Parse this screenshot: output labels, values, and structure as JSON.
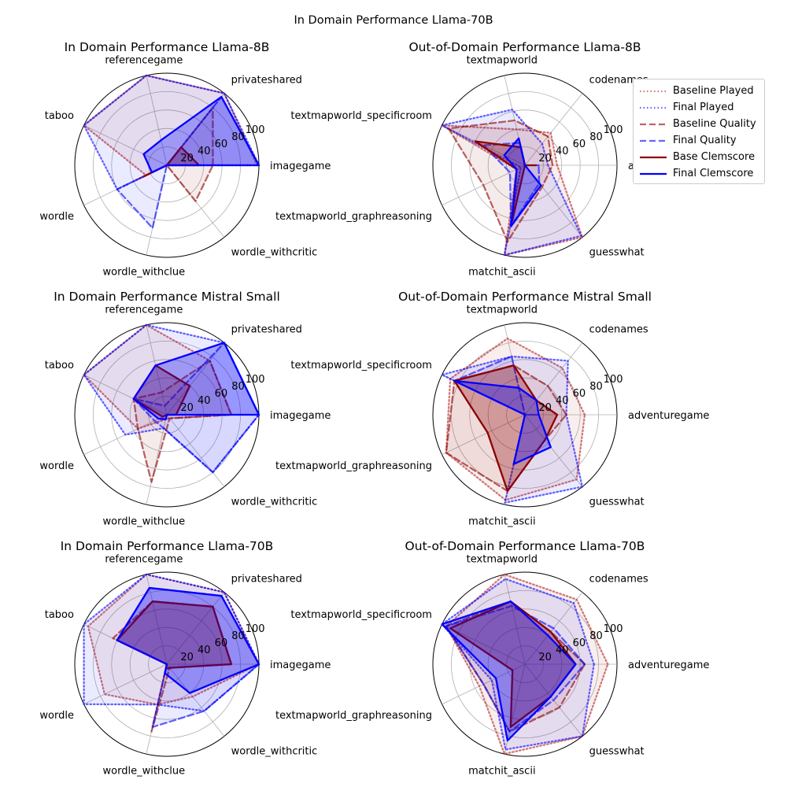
{
  "suptitle": "In Domain Performance Llama-70B",
  "legend": [
    {
      "label": "Baseline Played",
      "color": "#b22222",
      "style": "dotted",
      "width": 2.3
    },
    {
      "label": "Final Played",
      "color": "#0000ff",
      "style": "dotted",
      "width": 2.3
    },
    {
      "label": "Baseline Quality",
      "color": "#8b0000",
      "style": "dashed",
      "width": 2.3
    },
    {
      "label": "Final Quality",
      "color": "#0000ff",
      "style": "dashed",
      "width": 2.3
    },
    {
      "label": "Base Clemscore",
      "color": "#8b0000",
      "style": "solid",
      "width": 2.3
    },
    {
      "label": "Final Clemscore",
      "color": "#0000ff",
      "style": "solid",
      "width": 2.3
    }
  ],
  "chart_data": [
    {
      "type": "radar",
      "title": "In Domain Performance Llama-8B",
      "categories": [
        "imagegame",
        "privateshared",
        "referencegame",
        "taboo",
        "wordle",
        "wordle_withclue",
        "wordle_withcritic"
      ],
      "rlim": [
        0,
        100
      ],
      "rticks": [
        20,
        40,
        60,
        80,
        100
      ],
      "series": [
        {
          "name": "Baseline Played",
          "values": [
            98,
            100,
            100,
            100,
            25,
            0,
            0
          ]
        },
        {
          "name": "Final Played",
          "values": [
            100,
            100,
            100,
            100,
            60,
            0,
            0
          ]
        },
        {
          "name": "Baseline Quality",
          "values": [
            50,
            80,
            0,
            0,
            35,
            0,
            50
          ]
        },
        {
          "name": "Final Quality",
          "values": [
            100,
            95,
            0,
            0,
            60,
            70,
            0
          ]
        },
        {
          "name": "Base Clemscore",
          "values": [
            35,
            25,
            0,
            0,
            28,
            0,
            0
          ]
        },
        {
          "name": "Final Clemscore",
          "values": [
            100,
            95,
            28,
            28,
            18,
            0,
            0
          ]
        }
      ]
    },
    {
      "type": "radar",
      "title": "Out-of-Domain Performance Llama-8B",
      "categories": [
        "adventuregame",
        "codenames",
        "textmapworld",
        "textmapworld_specificroom",
        "textmapworld_graphreasoning",
        "matchit_ascii",
        "guesswhat"
      ],
      "rlim": [
        0,
        100
      ],
      "rticks": [
        20,
        40,
        60,
        80,
        100
      ],
      "series": [
        {
          "name": "Baseline Played",
          "values": [
            35,
            45,
            40,
            100,
            10,
            100,
            100
          ]
        },
        {
          "name": "Final Played",
          "values": [
            25,
            30,
            62,
            100,
            5,
            100,
            98
          ]
        },
        {
          "name": "Baseline Quality",
          "values": [
            30,
            40,
            50,
            92,
            50,
            85,
            30
          ]
        },
        {
          "name": "Final Quality",
          "values": [
            15,
            0,
            25,
            50,
            18,
            68,
            25
          ]
        },
        {
          "name": "Base Clemscore",
          "values": [
            12,
            0,
            20,
            60,
            10,
            62,
            0
          ]
        },
        {
          "name": "Final Clemscore",
          "values": [
            0,
            0,
            30,
            25,
            10,
            68,
            28
          ]
        }
      ]
    },
    {
      "type": "radar",
      "title": "In Domain Performance Mistral Small",
      "categories": [
        "imagegame",
        "privateshared",
        "referencegame",
        "taboo",
        "wordle",
        "wordle_withclue",
        "wordle_withcritic"
      ],
      "rlim": [
        0,
        100
      ],
      "rticks": [
        20,
        40,
        60,
        80,
        100
      ],
      "series": [
        {
          "name": "Baseline Played",
          "values": [
            70,
            75,
            100,
            100,
            35,
            5,
            5
          ]
        },
        {
          "name": "Final Played",
          "values": [
            100,
            100,
            100,
            100,
            50,
            15,
            80
          ]
        },
        {
          "name": "Baseline Quality",
          "values": [
            70,
            75,
            25,
            40,
            35,
            75,
            5
          ]
        },
        {
          "name": "Final Quality",
          "values": [
            100,
            100,
            10,
            40,
            15,
            15,
            80
          ]
        },
        {
          "name": "Base Clemscore",
          "values": [
            10,
            40,
            55,
            40,
            5,
            0,
            0
          ]
        },
        {
          "name": "Final Clemscore",
          "values": [
            100,
            100,
            55,
            40,
            10,
            5,
            0
          ]
        }
      ]
    },
    {
      "type": "radar",
      "title": "Out-of-Domain Performance Mistral Small",
      "categories": [
        "adventuregame",
        "codenames",
        "textmapworld",
        "textmapworld_specificroom",
        "textmapworld_graphreasoning",
        "matchit_ascii",
        "guesswhat"
      ],
      "rlim": [
        0,
        100
      ],
      "rticks": [
        20,
        40,
        60,
        80,
        100
      ],
      "series": [
        {
          "name": "Baseline Played",
          "values": [
            65,
            65,
            85,
            90,
            95,
            95,
            90
          ]
        },
        {
          "name": "Final Played",
          "values": [
            45,
            75,
            65,
            100,
            0,
            98,
            100
          ]
        },
        {
          "name": "Baseline Quality",
          "values": [
            45,
            40,
            55,
            85,
            95,
            85,
            35
          ]
        },
        {
          "name": "Final Quality",
          "values": [
            15,
            0,
            65,
            85,
            0,
            0,
            0
          ]
        },
        {
          "name": "Base Clemscore",
          "values": [
            35,
            20,
            55,
            85,
            45,
            85,
            35
          ]
        },
        {
          "name": "Final Clemscore",
          "values": [
            15,
            20,
            30,
            85,
            0,
            55,
            45
          ]
        }
      ]
    },
    {
      "type": "radar",
      "title": "In Domain Performance Llama-70B",
      "categories": [
        "imagegame",
        "privateshared",
        "referencegame",
        "taboo",
        "wordle",
        "wordle_withclue",
        "wordle_withcritic"
      ],
      "rlim": [
        0,
        100
      ],
      "rticks": [
        20,
        40,
        60,
        80,
        100
      ],
      "series": [
        {
          "name": "Baseline Played",
          "values": [
            100,
            100,
            100,
            95,
            75,
            45,
            45
          ]
        },
        {
          "name": "Final Played",
          "values": [
            100,
            100,
            100,
            100,
            100,
            45,
            65
          ]
        },
        {
          "name": "Baseline Quality",
          "values": [
            70,
            80,
            70,
            65,
            0,
            75,
            5
          ]
        },
        {
          "name": "Final Quality",
          "values": [
            100,
            95,
            85,
            60,
            0,
            70,
            65
          ]
        },
        {
          "name": "Base Clemscore",
          "values": [
            70,
            80,
            70,
            60,
            0,
            5,
            5
          ]
        },
        {
          "name": "Final Clemscore",
          "values": [
            100,
            95,
            85,
            60,
            0,
            10,
            40
          ]
        }
      ]
    },
    {
      "type": "radar",
      "title": "Out-of-Domain Performance Llama-70B",
      "categories": [
        "adventuregame",
        "codenames",
        "textmapworld",
        "textmapworld_specificroom",
        "textmapworld_graphreasoning",
        "matchit_ascii",
        "guesswhat"
      ],
      "rlim": [
        0,
        100
      ],
      "rticks": [
        20,
        40,
        60,
        80,
        100
      ],
      "series": [
        {
          "name": "Baseline Played",
          "values": [
            90,
            90,
            100,
            95,
            55,
            100,
            100
          ]
        },
        {
          "name": "Final Played",
          "values": [
            75,
            85,
            95,
            100,
            40,
            95,
            100
          ]
        },
        {
          "name": "Baseline Quality",
          "values": [
            65,
            45,
            70,
            95,
            50,
            75,
            60
          ]
        },
        {
          "name": "Final Quality",
          "values": [
            65,
            50,
            65,
            95,
            50,
            75,
            50
          ]
        },
        {
          "name": "Base Clemscore",
          "values": [
            55,
            45,
            70,
            90,
            15,
            70,
            45
          ]
        },
        {
          "name": "Final Clemscore",
          "values": [
            55,
            40,
            70,
            100,
            35,
            85,
            45
          ]
        }
      ]
    }
  ]
}
